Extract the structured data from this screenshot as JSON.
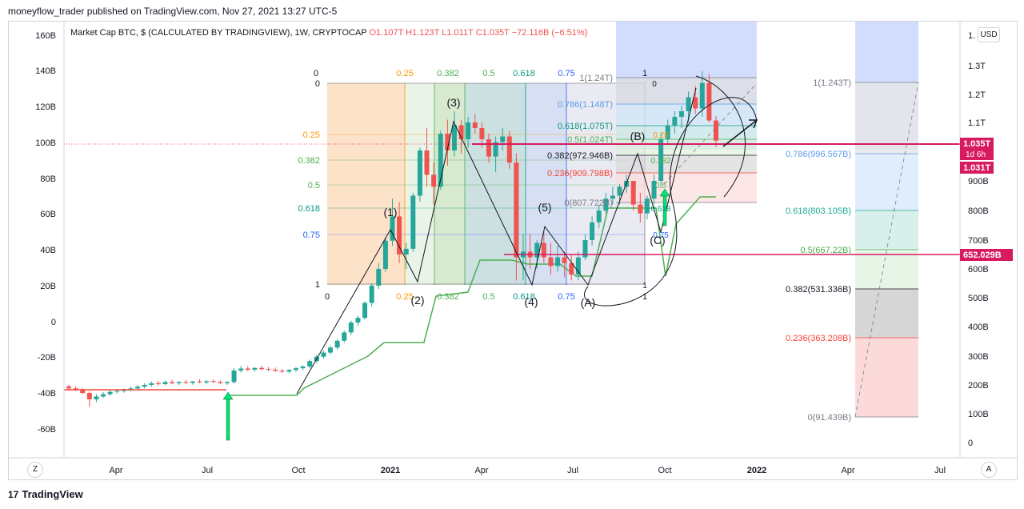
{
  "header": {
    "publisher_line": "moneyflow_trader published on TradingView.com, Nov 27, 2021 13:27 UTC-5"
  },
  "legend": {
    "symbol": "Market Cap BTC, $ (CALCULATED BY TRADINGVIEW), 1W, CRYPTOCAP",
    "open": "O1.107T",
    "high": "H1.123T",
    "low": "L1.011T",
    "close": "C1.035T",
    "change": "−72.116B (−6.51%)"
  },
  "footer": {
    "brand": "TradingView",
    "logo_glyph": "17"
  },
  "buttons": {
    "currency": "USD",
    "zoom": "Z",
    "auto": "A"
  },
  "colors": {
    "up": "#26a69a",
    "down": "#ef5350",
    "price_line": "#d81b60",
    "indicator": "#4caf50",
    "hline": "#f44336"
  },
  "chart_data": {
    "type": "candlestick",
    "timeframe": "1W",
    "x_ticks": [
      "Apr",
      "Jul",
      "Oct",
      "2021",
      "Apr",
      "Jul",
      "Oct",
      "2022",
      "Apr",
      "Jul"
    ],
    "left_axis": {
      "ticks": [
        "160B",
        "140B",
        "120B",
        "100B",
        "80B",
        "60B",
        "40B",
        "20B",
        "0",
        "-20B",
        "-40B",
        "-60B"
      ],
      "range": [
        -70,
        170
      ]
    },
    "right_axis": {
      "ticks": [
        "1.",
        "1.3T",
        "1.2T",
        "1.1T",
        "1T",
        "900B",
        "800B",
        "700B",
        "600B",
        "500B",
        "400B",
        "300B",
        "200B",
        "100B",
        "0"
      ],
      "range": [
        -30,
        1470
      ],
      "scale": "log"
    },
    "price_labels": [
      {
        "text": "1.035T",
        "sub": "1d 6h",
        "color": "#d81b60"
      },
      {
        "text": "1.031T",
        "color": "#d81b60"
      },
      {
        "text": "652.029B",
        "color": "#d81b60"
      }
    ],
    "candles_billion": [
      [
        195,
        201,
        182,
        188
      ],
      [
        188,
        196,
        180,
        184
      ],
      [
        184,
        190,
        168,
        172
      ],
      [
        172,
        178,
        125,
        150
      ],
      [
        150,
        168,
        140,
        160
      ],
      [
        160,
        175,
        155,
        168
      ],
      [
        168,
        182,
        162,
        176
      ],
      [
        176,
        186,
        170,
        179
      ],
      [
        179,
        188,
        173,
        183
      ],
      [
        183,
        195,
        177,
        188
      ],
      [
        188,
        200,
        183,
        194
      ],
      [
        194,
        206,
        188,
        200
      ],
      [
        200,
        212,
        194,
        206
      ],
      [
        206,
        214,
        198,
        203
      ],
      [
        203,
        215,
        199,
        210
      ],
      [
        210,
        218,
        203,
        206
      ],
      [
        206,
        214,
        200,
        210
      ],
      [
        210,
        217,
        204,
        207
      ],
      [
        207,
        214,
        201,
        212
      ],
      [
        212,
        220,
        206,
        209
      ],
      [
        209,
        216,
        203,
        213
      ],
      [
        213,
        219,
        207,
        210
      ],
      [
        210,
        216,
        204,
        206
      ],
      [
        206,
        213,
        200,
        210
      ],
      [
        210,
        258,
        205,
        250
      ],
      [
        250,
        266,
        243,
        257
      ],
      [
        257,
        265,
        248,
        253
      ],
      [
        253,
        262,
        246,
        259
      ],
      [
        259,
        267,
        251,
        255
      ],
      [
        255,
        262,
        248,
        253
      ],
      [
        253,
        260,
        246,
        249
      ],
      [
        249,
        256,
        241,
        246
      ],
      [
        246,
        255,
        240,
        252
      ],
      [
        252,
        262,
        245,
        258
      ],
      [
        258,
        268,
        251,
        264
      ],
      [
        264,
        288,
        258,
        283
      ],
      [
        283,
        305,
        276,
        298
      ],
      [
        298,
        318,
        291,
        312
      ],
      [
        312,
        335,
        305,
        329
      ],
      [
        329,
        358,
        322,
        352
      ],
      [
        352,
        386,
        345,
        380
      ],
      [
        380,
        420,
        372,
        414
      ],
      [
        414,
        438,
        402,
        430
      ],
      [
        430,
        488,
        424,
        482
      ],
      [
        482,
        551,
        470,
        542
      ],
      [
        542,
        620,
        530,
        600
      ],
      [
        600,
        710,
        590,
        698
      ],
      [
        698,
        840,
        680,
        780
      ],
      [
        780,
        828,
        620,
        650
      ],
      [
        650,
        690,
        600,
        670
      ],
      [
        670,
        860,
        660,
        850
      ],
      [
        850,
        1010,
        830,
        1000
      ],
      [
        1000,
        1080,
        880,
        920
      ],
      [
        920,
        960,
        820,
        880
      ],
      [
        880,
        1070,
        870,
        1060
      ],
      [
        1060,
        1110,
        950,
        1000
      ],
      [
        1000,
        1140,
        980,
        1090
      ],
      [
        1090,
        1110,
        990,
        1040
      ],
      [
        1040,
        1120,
        1010,
        1100
      ],
      [
        1100,
        1130,
        1060,
        1080
      ],
      [
        1080,
        1100,
        1010,
        1040
      ],
      [
        1040,
        1060,
        960,
        980
      ],
      [
        980,
        1050,
        930,
        1030
      ],
      [
        1030,
        1080,
        1000,
        1050
      ],
      [
        1050,
        1070,
        940,
        960
      ],
      [
        960,
        990,
        560,
        640
      ],
      [
        640,
        720,
        560,
        660
      ],
      [
        660,
        720,
        600,
        640
      ],
      [
        640,
        700,
        600,
        690
      ],
      [
        690,
        730,
        620,
        640
      ],
      [
        640,
        690,
        580,
        610
      ],
      [
        610,
        680,
        590,
        640
      ],
      [
        640,
        660,
        570,
        620
      ],
      [
        620,
        650,
        560,
        580
      ],
      [
        580,
        660,
        560,
        640
      ],
      [
        640,
        720,
        630,
        700
      ],
      [
        700,
        780,
        680,
        760
      ],
      [
        760,
        820,
        740,
        800
      ],
      [
        800,
        860,
        790,
        840
      ],
      [
        840,
        880,
        820,
        850
      ],
      [
        850,
        890,
        820,
        880
      ],
      [
        880,
        920,
        860,
        900
      ],
      [
        900,
        870,
        800,
        820
      ],
      [
        820,
        860,
        760,
        790
      ],
      [
        790,
        850,
        770,
        840
      ],
      [
        840,
        920,
        820,
        900
      ],
      [
        900,
        1060,
        880,
        1040
      ],
      [
        1040,
        1110,
        1020,
        1090
      ],
      [
        1090,
        1140,
        1060,
        1120
      ],
      [
        1120,
        1160,
        1080,
        1140
      ],
      [
        1140,
        1210,
        1100,
        1190
      ],
      [
        1190,
        1230,
        1130,
        1150
      ],
      [
        1150,
        1280,
        1120,
        1240
      ],
      [
        1240,
        1270,
        1100,
        1107
      ],
      [
        1107,
        1123,
        1011,
        1035
      ]
    ],
    "supertrend_indicator": "green step line below price",
    "elliott_wave_labels": [
      "(1)",
      "(2)",
      "(3)",
      "(4)",
      "(5)",
      "(A)",
      "(B)",
      "(C)"
    ],
    "fib_time_zone": {
      "top_labels": [
        "0",
        "0.25",
        "0.382",
        "0.5",
        "0.618",
        "0.75",
        "1"
      ],
      "bottom_labels": [
        "0",
        "0.25",
        "0.382",
        "0.5",
        "0.618",
        "0.75",
        "1"
      ],
      "left_levels": [
        "0",
        "0.25",
        "0.382",
        "0.5",
        "0.618",
        "0.75",
        "1"
      ]
    },
    "fib_retracement_mid": [
      "1(1.24T)",
      "0.786(1.148T)",
      "0.618(1.075T)",
      "0.5(1.024T)",
      "0.382(972.946B)",
      "0.236(909.798B)",
      "0(807.722B)"
    ],
    "fib_mini_labels": [
      "0",
      "0.25",
      "0.382",
      "0.5",
      "0.618",
      "0.75",
      "1"
    ],
    "fib_retracement_right": [
      {
        "label": "1(1.243T)",
        "color": "#787b86"
      },
      {
        "label": "0.786(996.567B)",
        "color": "#5d9cec"
      },
      {
        "label": "0.618(803.105B)",
        "color": "#22ab94"
      },
      {
        "label": "0.5(667.22B)",
        "color": "#4caf50"
      },
      {
        "label": "0.382(531.336B)",
        "color": "#131722"
      },
      {
        "label": "0.236(363.208B)",
        "color": "#f44336"
      },
      {
        "label": "0(91.439B)",
        "color": "#787b86"
      }
    ]
  }
}
